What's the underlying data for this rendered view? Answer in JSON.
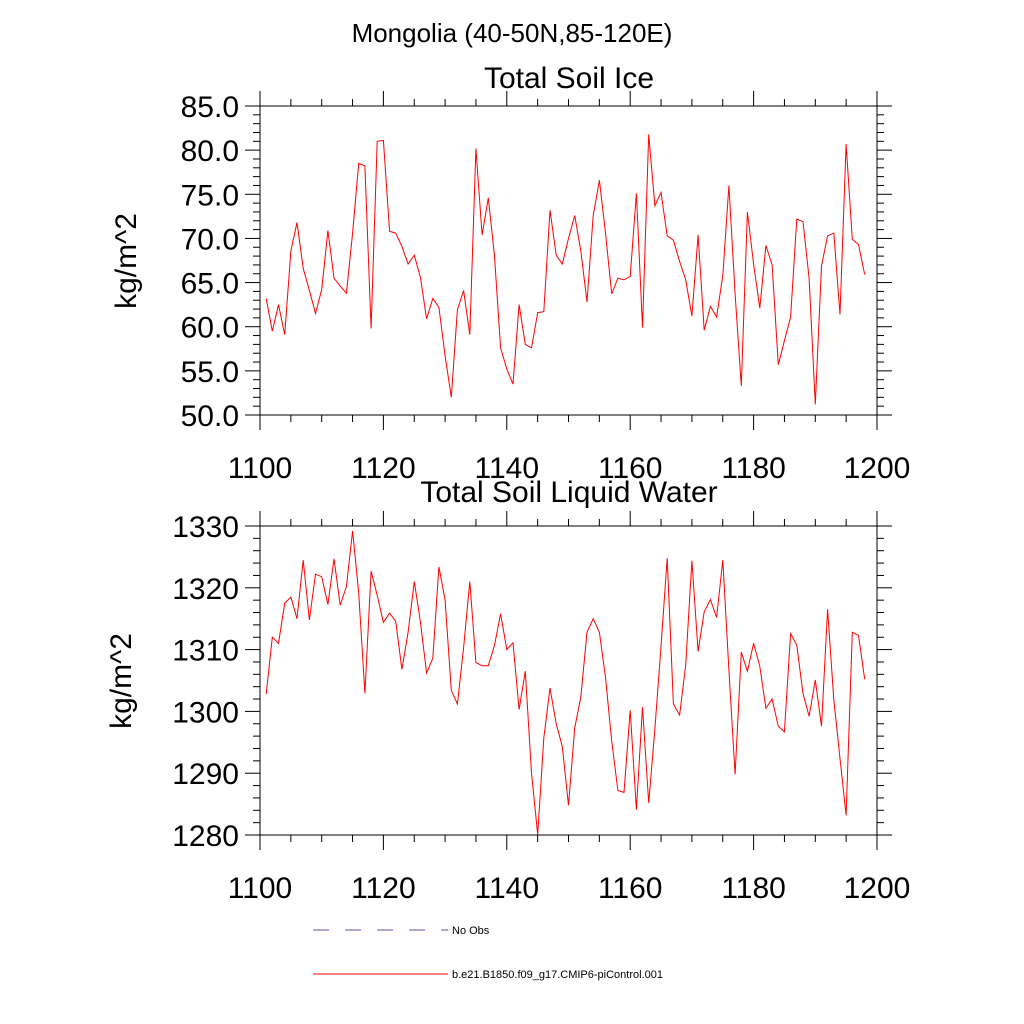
{
  "chart_data": {
    "title": "Mongolia (40-50N,85-120E)",
    "legend": [
      {
        "label": "No Obs",
        "style": "dashed",
        "color": "#5555aa"
      },
      {
        "label": "b.e21.B1850.f09_g17.CMIP6-piControl.001",
        "style": "solid",
        "color": "#ff0000"
      }
    ],
    "panels": [
      {
        "type": "line",
        "title": "Total Soil Ice",
        "ylabel": "kg/m^2",
        "xlabel": "",
        "xlim": [
          1100,
          1200
        ],
        "ylim": [
          50,
          85
        ],
        "xticks": [
          1100,
          1120,
          1140,
          1160,
          1180,
          1200
        ],
        "xtick_labels": [
          "1100",
          "1120",
          "1140",
          "1160",
          "1180",
          "1200"
        ],
        "yticks": [
          50,
          55,
          60,
          65,
          70,
          75,
          80,
          85
        ],
        "ytick_labels": [
          "50.0",
          "55.0",
          "60.0",
          "65.0",
          "70.0",
          "75.0",
          "80.0",
          "85.0"
        ],
        "series": [
          {
            "name": "b.e21.B1850.f09_g17.CMIP6-piControl.001",
            "color": "#ff0000",
            "x_start": 1101,
            "values": [
              63.2,
              59.5,
              62.5,
              59.1,
              68.6,
              71.8,
              66.6,
              64.1,
              61.5,
              64.2,
              70.9,
              65.5,
              64.6,
              63.8,
              70.6,
              78.5,
              78.2,
              59.8,
              81.0,
              81.1,
              70.8,
              70.6,
              69.1,
              67.1,
              68.1,
              65.6,
              60.9,
              63.2,
              62.2,
              56.7,
              52.0,
              61.9,
              64.1,
              59.1,
              80.2,
              70.4,
              74.6,
              68.0,
              57.6,
              55.2,
              53.5,
              62.5,
              58.0,
              57.6,
              61.6,
              61.7,
              73.2,
              68.1,
              67.1,
              70.0,
              72.6,
              68.6,
              62.8,
              72.6,
              76.6,
              70.6,
              63.7,
              65.5,
              65.3,
              65.7,
              75.1,
              59.9,
              81.8,
              73.7,
              75.2,
              70.3,
              69.8,
              67.4,
              65.3,
              61.2,
              70.4,
              59.6,
              62.3,
              61.1,
              65.8,
              76.0,
              63.7,
              53.3,
              73.0,
              67.1,
              62.1,
              69.2,
              67.0,
              55.7,
              58.4,
              61.1,
              72.2,
              71.9,
              65.5,
              51.2,
              66.9,
              70.3,
              70.6,
              61.4,
              80.7,
              69.9,
              69.3,
              65.9
            ]
          }
        ]
      },
      {
        "type": "line",
        "title": "Total Soil Liquid Water",
        "ylabel": "kg/m^2",
        "xlabel": "",
        "xlim": [
          1100,
          1200
        ],
        "ylim": [
          1280,
          1330
        ],
        "xticks": [
          1100,
          1120,
          1140,
          1160,
          1180,
          1200
        ],
        "xtick_labels": [
          "1100",
          "1120",
          "1140",
          "1160",
          "1180",
          "1200"
        ],
        "yticks": [
          1280,
          1290,
          1300,
          1310,
          1320,
          1330
        ],
        "ytick_labels": [
          "1280",
          "1290",
          "1300",
          "1310",
          "1320",
          "1330"
        ],
        "series": [
          {
            "name": "b.e21.B1850.f09_g17.CMIP6-piControl.001",
            "color": "#ff0000",
            "x_start": 1101,
            "values": [
              1302.8,
              1312.0,
              1311.0,
              1317.5,
              1318.5,
              1315.0,
              1324.5,
              1314.8,
              1322.2,
              1321.8,
              1317.3,
              1324.7,
              1317.2,
              1320.2,
              1329.2,
              1319.2,
              1302.9,
              1322.7,
              1318.8,
              1314.4,
              1315.9,
              1314.6,
              1306.8,
              1312.8,
              1321.0,
              1314.5,
              1306.2,
              1308.6,
              1323.4,
              1318.0,
              1303.4,
              1301.2,
              1310.3,
              1321.0,
              1307.9,
              1307.4,
              1307.4,
              1310.7,
              1315.8,
              1310.0,
              1311.1,
              1300.3,
              1306.5,
              1290.0,
              1280.1,
              1295.7,
              1303.8,
              1298.0,
              1294.3,
              1284.8,
              1297.3,
              1302.3,
              1312.8,
              1315.0,
              1312.8,
              1305.5,
              1295.2,
              1287.2,
              1286.9,
              1300.2,
              1284.1,
              1300.7,
              1285.2,
              1297.2,
              1310.5,
              1324.8,
              1301.2,
              1299.4,
              1307.5,
              1324.4,
              1309.7,
              1316.1,
              1318.1,
              1315.2,
              1324.5,
              1306.7,
              1289.8,
              1309.6,
              1306.5,
              1311.0,
              1307.3,
              1300.5,
              1302.0,
              1297.6,
              1296.7,
              1312.6,
              1310.7,
              1302.9,
              1299.2,
              1305.1,
              1297.6,
              1316.5,
              1301.9,
              1292.4,
              1283.2,
              1312.8,
              1312.3,
              1305.2
            ]
          }
        ]
      }
    ]
  }
}
